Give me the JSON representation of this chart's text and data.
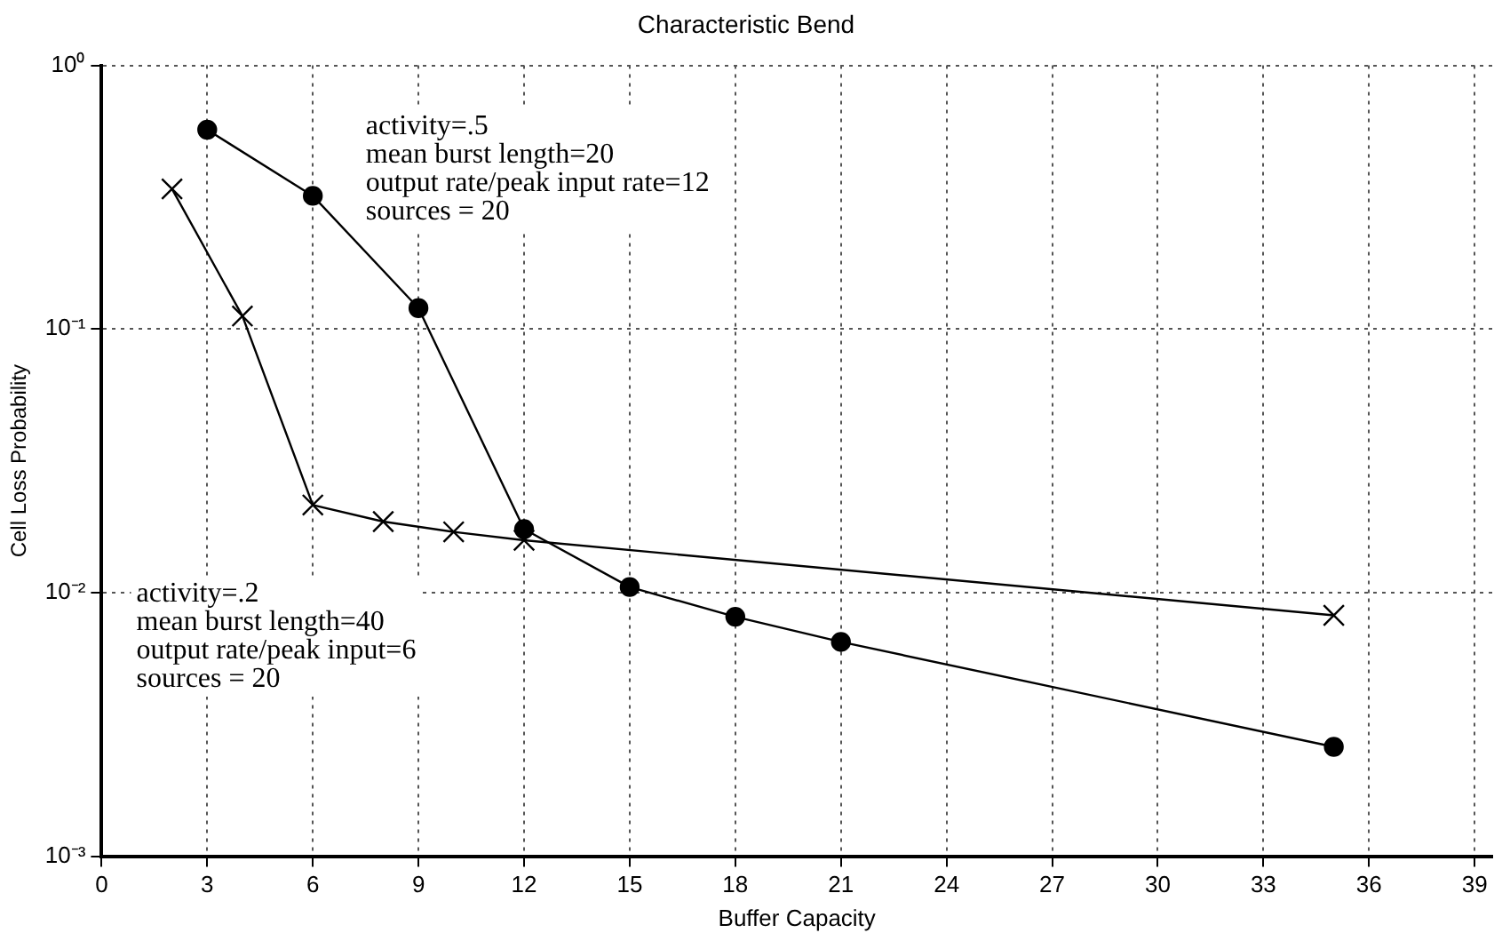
{
  "chart_data": {
    "type": "line",
    "title": "Characteristic Bend",
    "xlabel": "Buffer Capacity",
    "ylabel": "Cell Loss Probability",
    "series": [
      {
        "color": "#000000",
        "marker": "circle",
        "x": [
          3,
          6,
          9,
          12,
          15,
          18,
          21,
          35
        ],
        "values": [
          0.57,
          0.32,
          0.12,
          0.0174,
          0.0105,
          0.0081,
          0.0065,
          0.0026
        ]
      },
      {
        "color": "#000000",
        "marker": "cross",
        "x": [
          2,
          4,
          6,
          8,
          10,
          12,
          35
        ],
        "values": [
          0.34,
          0.112,
          0.0215,
          0.0186,
          0.017,
          0.0158,
          0.0082
        ]
      }
    ],
    "log": "y",
    "xlim": [
      0,
      39.5
    ],
    "xticks": [
      0,
      3,
      6,
      9,
      12,
      15,
      18,
      21,
      24,
      27,
      30,
      33,
      36,
      39
    ],
    "ylim": [
      0.001,
      1
    ],
    "yticks": [
      {
        "value": 0.001,
        "label": "10⁻³"
      },
      {
        "value": 0.01,
        "label": "10⁻²"
      },
      {
        "value": 0.1,
        "label": "10⁻¹"
      },
      {
        "value": 1,
        "label": "10⁰"
      }
    ],
    "grid": true,
    "line_style": "solid",
    "legend": false,
    "annotations": [
      {
        "text": "activity=.5\nmean burst length=20\noutput rate/peak input rate=12\nsources = 20"
      },
      {
        "text": "activity=.2\nmean burst length=40\noutput rate/peak input=6\nsources = 20"
      }
    ]
  }
}
